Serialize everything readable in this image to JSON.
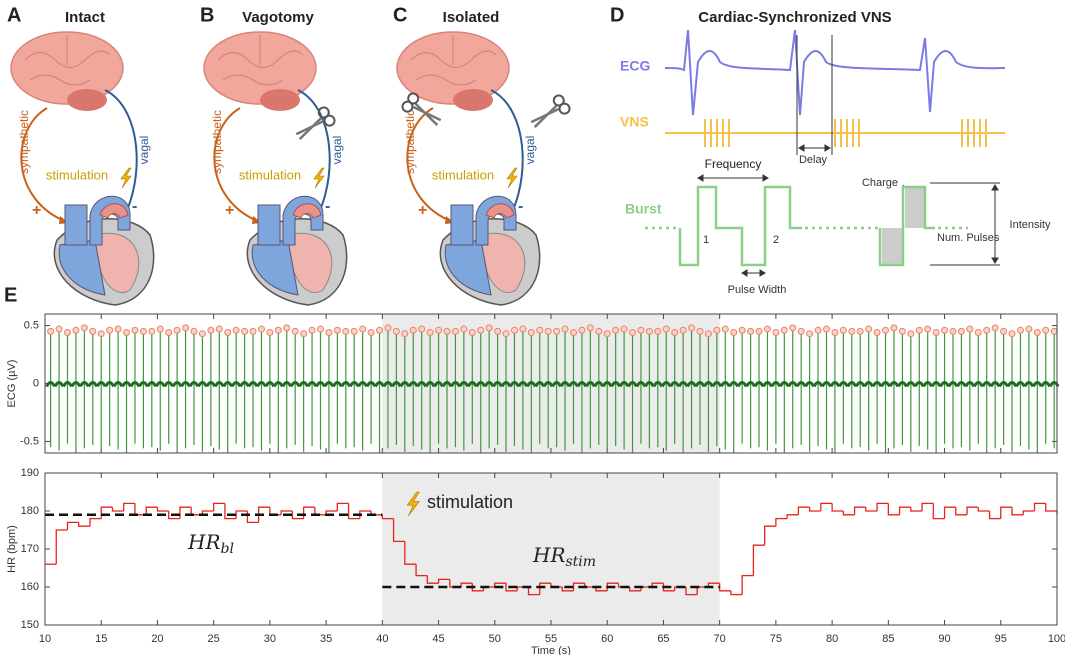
{
  "panels": [
    {
      "letter": "A",
      "title": "Intact",
      "sympathetic": "sympathetic",
      "vagal": "vagal",
      "stimulation": "stimulation",
      "plus": "+",
      "minus": "-"
    },
    {
      "letter": "B",
      "title": "Vagotomy",
      "sympathetic": "sympathetic",
      "vagal": "vagal",
      "stimulation": "stimulation",
      "plus": "+",
      "minus": "-"
    },
    {
      "letter": "C",
      "title": "Isolated",
      "sympathetic": "sympathetic",
      "vagal": "vagal",
      "stimulation": "stimulation",
      "plus": "+",
      "minus": "-"
    }
  ],
  "panel_d": {
    "letter": "D",
    "title": "Cardiac-Synchronized VNS",
    "ecg": "ECG",
    "vns": "VNS",
    "delay": "Delay",
    "frequency": "Frequency",
    "burst": "Burst",
    "pulse1": "1",
    "pulse2": "2",
    "pulse_width": "Pulse Width",
    "charge": "Charge",
    "num_pulses": "Num. Pulses",
    "intensity": "Intensity"
  },
  "panel_e": {
    "letter": "E"
  },
  "chart_data": [
    {
      "type": "ecg",
      "ylabel": "ECG (µV)",
      "xlim": [
        10,
        100
      ],
      "xticks": [
        10,
        15,
        20,
        25,
        30,
        35,
        40,
        45,
        50,
        55,
        60,
        65,
        70,
        75,
        80,
        85,
        90,
        95,
        100
      ],
      "ylim": [
        -0.6,
        0.6
      ],
      "yticks": [
        -0.5,
        0,
        0.5
      ],
      "shade": [
        40,
        70
      ],
      "color": "#3c9a3c",
      "marker_color": "#e8836a",
      "x": [
        10.5,
        11.25,
        12,
        12.75,
        13.5,
        14.25,
        15,
        15.75,
        16.5,
        17.25,
        18,
        18.75,
        19.5,
        20.25,
        21,
        21.75,
        22.5,
        23.25,
        24,
        24.75,
        25.5,
        26.25,
        27,
        27.75,
        28.5,
        29.25,
        30,
        30.75,
        31.5,
        32.25,
        33,
        33.75,
        34.5,
        35.25,
        36,
        36.75,
        37.5,
        38.25,
        39,
        39.75,
        40.5,
        41.25,
        42,
        42.75,
        43.5,
        44.25,
        45,
        45.75,
        46.5,
        47.25,
        48,
        48.75,
        49.5,
        50.25,
        51,
        51.75,
        52.5,
        53.25,
        54,
        54.75,
        55.5,
        56.25,
        57,
        57.75,
        58.5,
        59.25,
        60,
        60.75,
        61.5,
        62.25,
        63,
        63.75,
        64.5,
        65.25,
        66,
        66.75,
        67.5,
        68.25,
        69,
        69.75,
        70.5,
        71.25,
        72,
        72.75,
        73.5,
        74.25,
        75,
        75.75,
        76.5,
        77.25,
        78,
        78.75,
        79.5,
        80.25,
        81,
        81.75,
        82.5,
        83.25,
        84,
        84.75,
        85.5,
        86.25,
        87,
        87.75,
        88.5,
        89.25,
        90,
        90.75,
        91.5,
        92.25,
        93,
        93.75,
        94.5,
        95.25,
        96,
        96.75,
        97.5,
        98.25,
        99,
        99.75
      ],
      "peaks": [
        0.45,
        0.47,
        0.44,
        0.46,
        0.48,
        0.45,
        0.43,
        0.46,
        0.47,
        0.44,
        0.46,
        0.45,
        0.45,
        0.47,
        0.44,
        0.46,
        0.48,
        0.45,
        0.43,
        0.46,
        0.47,
        0.44,
        0.46,
        0.45,
        0.45,
        0.47,
        0.44,
        0.46,
        0.48,
        0.45,
        0.43,
        0.46,
        0.47,
        0.44,
        0.46,
        0.45,
        0.45,
        0.47,
        0.44,
        0.46,
        0.48,
        0.45,
        0.43,
        0.46,
        0.47,
        0.44,
        0.46,
        0.45,
        0.45,
        0.47,
        0.44,
        0.46,
        0.48,
        0.45,
        0.43,
        0.46,
        0.47,
        0.44,
        0.46,
        0.45,
        0.45,
        0.47,
        0.44,
        0.46,
        0.48,
        0.45,
        0.43,
        0.46,
        0.47,
        0.44,
        0.46,
        0.45,
        0.45,
        0.47,
        0.44,
        0.46,
        0.48,
        0.45,
        0.43,
        0.46,
        0.47,
        0.44,
        0.46,
        0.45,
        0.45,
        0.47,
        0.44,
        0.46,
        0.48,
        0.45,
        0.43,
        0.46,
        0.47,
        0.44,
        0.46,
        0.45,
        0.45,
        0.47,
        0.44,
        0.46,
        0.48,
        0.45,
        0.43,
        0.46,
        0.47,
        0.44,
        0.46,
        0.45,
        0.45,
        0.47,
        0.44,
        0.46,
        0.48,
        0.45,
        0.43,
        0.46,
        0.47,
        0.44,
        0.46,
        0.45
      ],
      "troughs": [
        -0.55,
        -0.58,
        -0.52,
        -0.6,
        -0.56,
        -0.53,
        -0.59,
        -0.54,
        -0.57,
        -0.6,
        -0.52,
        -0.56,
        -0.55,
        -0.58,
        -0.52,
        -0.6,
        -0.56,
        -0.53,
        -0.59,
        -0.54,
        -0.57,
        -0.6,
        -0.52,
        -0.56,
        -0.55,
        -0.58,
        -0.52,
        -0.6,
        -0.56,
        -0.53,
        -0.59,
        -0.54,
        -0.57,
        -0.6,
        -0.52,
        -0.56,
        -0.55,
        -0.58,
        -0.52,
        -0.6,
        -0.56,
        -0.53,
        -0.59,
        -0.54,
        -0.57,
        -0.6,
        -0.52,
        -0.56,
        -0.55,
        -0.58,
        -0.52,
        -0.6,
        -0.56,
        -0.53,
        -0.59,
        -0.54,
        -0.57,
        -0.6,
        -0.52,
        -0.56,
        -0.55,
        -0.58,
        -0.52,
        -0.6,
        -0.56,
        -0.53,
        -0.59,
        -0.54,
        -0.57,
        -0.6,
        -0.52,
        -0.56,
        -0.55,
        -0.58,
        -0.52,
        -0.6,
        -0.56,
        -0.53,
        -0.59,
        -0.54,
        -0.57,
        -0.6,
        -0.52,
        -0.56,
        -0.55,
        -0.58,
        -0.52,
        -0.6,
        -0.56,
        -0.53,
        -0.59,
        -0.54,
        -0.57,
        -0.6,
        -0.52,
        -0.56,
        -0.55,
        -0.58,
        -0.52,
        -0.6,
        -0.56,
        -0.53,
        -0.59,
        -0.54,
        -0.57,
        -0.6,
        -0.52,
        -0.56,
        -0.55,
        -0.58,
        -0.52,
        -0.6,
        -0.56,
        -0.53,
        -0.59,
        -0.54,
        -0.57,
        -0.6,
        -0.52,
        -0.56
      ]
    },
    {
      "type": "step",
      "xlabel": "Time (s)",
      "ylabel": "HR (bpm)",
      "xlim": [
        10,
        100
      ],
      "xticks": [
        10,
        15,
        20,
        25,
        30,
        35,
        40,
        45,
        50,
        55,
        60,
        65,
        70,
        75,
        80,
        85,
        90,
        95,
        100
      ],
      "ylim": [
        150,
        190
      ],
      "yticks": [
        150,
        160,
        170,
        180,
        190
      ],
      "shade": [
        40,
        70
      ],
      "color": "#e8231c",
      "x": [
        10,
        11,
        12,
        13,
        14,
        15,
        16,
        17,
        18,
        19,
        20,
        21,
        22,
        23,
        24,
        25,
        26,
        27,
        28,
        29,
        30,
        31,
        32,
        33,
        34,
        35,
        36,
        37,
        38,
        39,
        40,
        41,
        42,
        43,
        44,
        45,
        46,
        47,
        48,
        49,
        50,
        51,
        52,
        53,
        54,
        55,
        56,
        57,
        58,
        59,
        60,
        61,
        62,
        63,
        64,
        65,
        66,
        67,
        68,
        69,
        70,
        71,
        72,
        73,
        74,
        75,
        76,
        77,
        78,
        79,
        80,
        81,
        82,
        83,
        84,
        85,
        86,
        87,
        88,
        89,
        90,
        91,
        92,
        93,
        94,
        95,
        96,
        97,
        98,
        99,
        100
      ],
      "values": [
        166,
        175,
        177,
        176,
        178,
        181,
        180,
        182,
        179,
        181,
        180,
        178,
        181,
        179,
        180,
        182,
        178,
        180,
        177,
        181,
        179,
        180,
        178,
        181,
        179,
        180,
        182,
        178,
        180,
        179,
        178,
        172,
        166,
        163,
        161,
        162,
        160,
        161,
        159,
        160,
        161,
        159,
        160,
        158,
        161,
        160,
        159,
        161,
        160,
        159,
        161,
        160,
        159,
        160,
        161,
        159,
        160,
        158,
        160,
        161,
        159,
        158,
        163,
        171,
        176,
        178,
        179,
        181,
        180,
        182,
        180,
        179,
        181,
        180,
        182,
        179,
        181,
        180,
        182,
        178,
        181,
        179,
        181,
        180,
        178,
        181,
        179,
        180,
        182,
        180,
        179
      ],
      "reference_lines": [
        {
          "x": [
            10,
            40
          ],
          "y": 179
        },
        {
          "x": [
            40,
            70
          ],
          "y": 160
        }
      ],
      "annotations": [
        {
          "text": "stimulation"
        },
        {
          "label": "HR",
          "sub": "bl"
        },
        {
          "label": "HR",
          "sub": "stim"
        }
      ]
    }
  ]
}
